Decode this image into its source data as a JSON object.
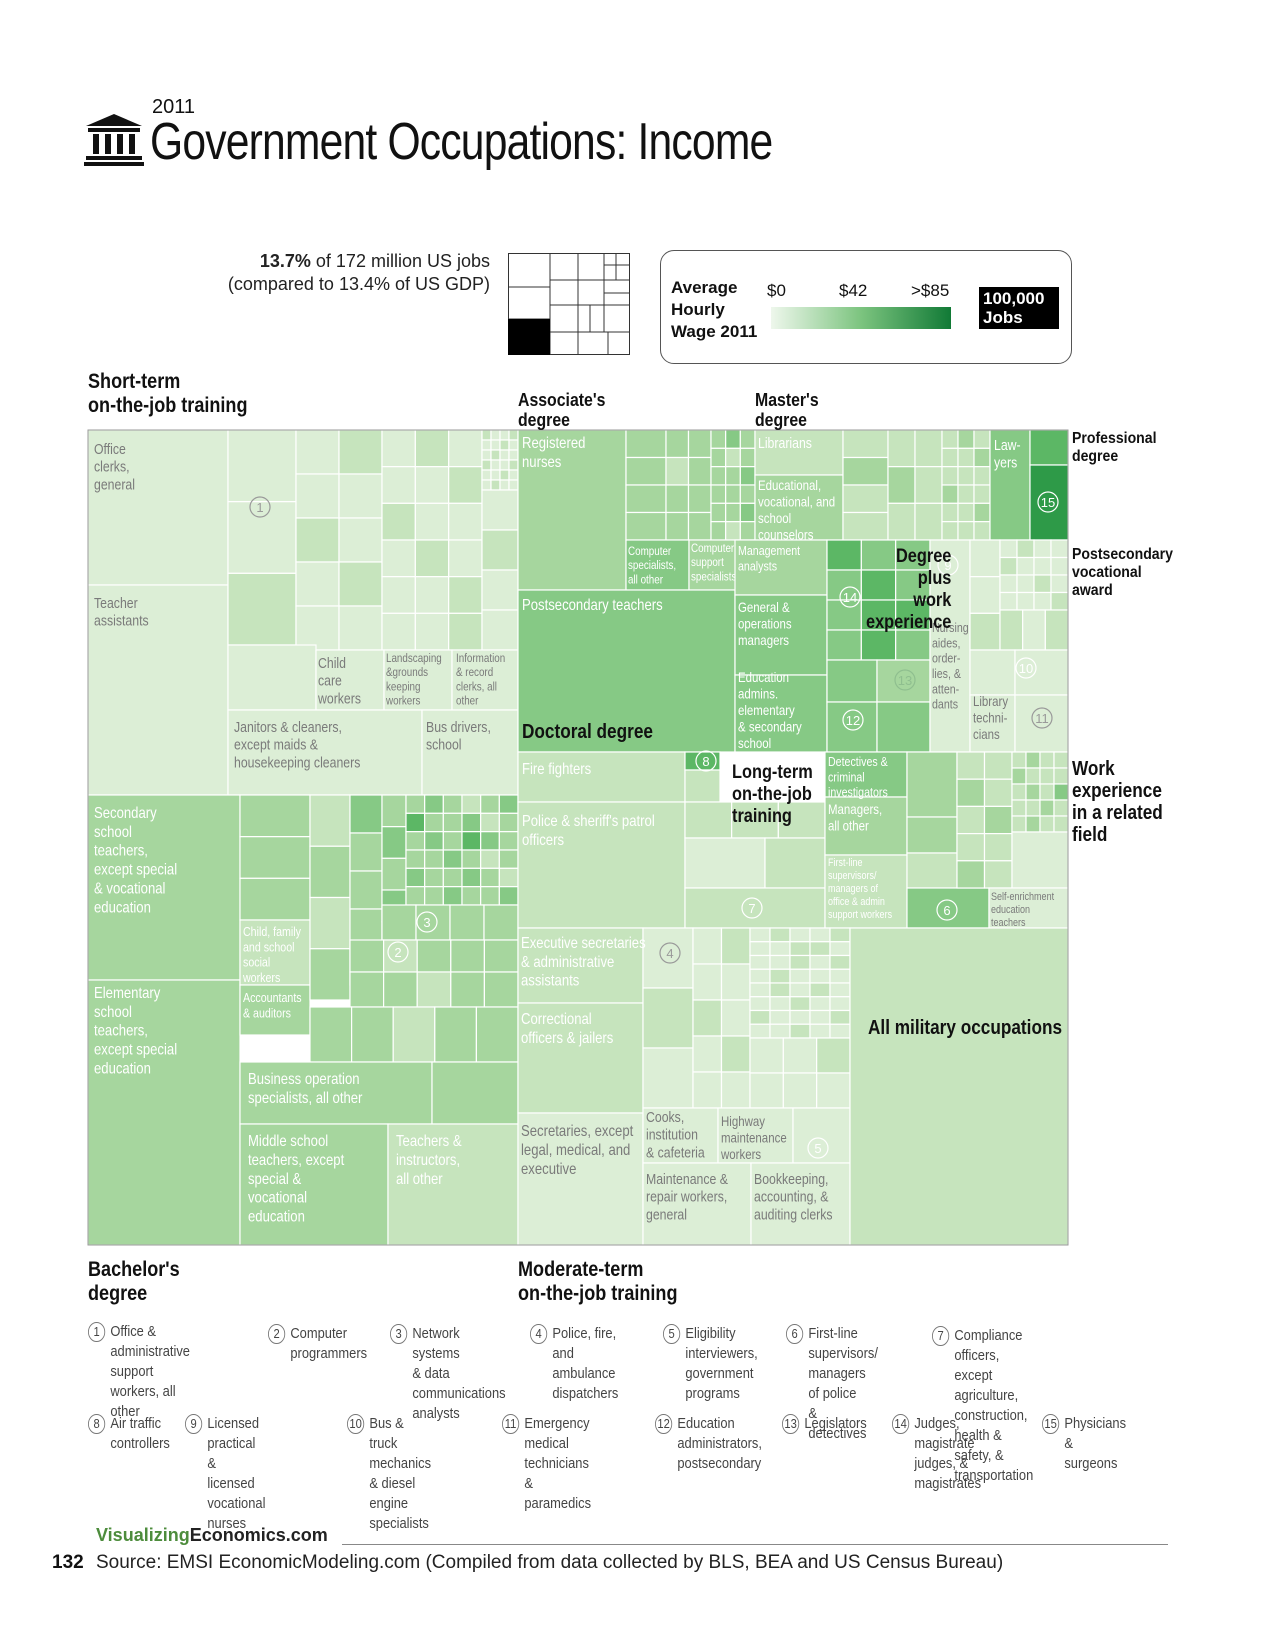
{
  "header": {
    "year": "2011",
    "title": "Government Occupations: Income"
  },
  "summary": {
    "pct": "13.7%",
    "line1_rest": " of 172 million US jobs",
    "line2": "(compared to 13.4% of US GDP)"
  },
  "legend": {
    "title_lines": [
      "Average",
      "Hourly",
      "Wage 2011"
    ],
    "ticks": [
      "$0",
      "$42",
      ">$85"
    ],
    "jobs_box": [
      "100,000",
      "Jobs"
    ]
  },
  "colors": {
    "c1": "#dceed6",
    "c2": "#c6e4bd",
    "c3": "#a6d69e",
    "c4": "#86c985",
    "c5": "#5cb765",
    "c6": "#2e9a48",
    "c7": "#127a34",
    "border": "#ffffff",
    "frame": "#999999"
  },
  "groups": {
    "short_term": "Short-term\non-the-job training",
    "associates": "Associate's\ndegree",
    "masters": "Master's\ndegree",
    "professional": "Professional\ndegree",
    "postsecondary_vocational": "Postsecondary\nvocational\naward",
    "work_experience": "Work\nexperience\nin a related\nfield",
    "bachelors": "Bachelor's\ndegree",
    "moderate_term": "Moderate-term\non-the-job training",
    "doctoral": "Doctoral degree",
    "degree_plus_work": "Degree\nplus\nwork\nexperience",
    "long_term": "Long-term\non-the-job\ntraining",
    "military": "All military occupations"
  },
  "chart_data": {
    "type": "treemap",
    "title": "Government Occupations: Income",
    "subtitle": "2011",
    "size_measure": "Jobs",
    "color_measure": "Average Hourly Wage 2011",
    "color_scale": {
      "min": 0,
      "mid": 42,
      "max": 85,
      "max_label": ">$85"
    },
    "cells": [
      {
        "label": "Office clerks, general",
        "group": "Short-term on-the-job training",
        "shade": 1
      },
      {
        "label": "Teacher assistants",
        "group": "Short-term on-the-job training",
        "shade": 1
      },
      {
        "label": "Child care workers",
        "group": "Short-term on-the-job training",
        "shade": 1
      },
      {
        "label": "Landscaping &grounds keeping workers",
        "group": "Short-term on-the-job training",
        "shade": 1
      },
      {
        "label": "Information & record clerks, all other",
        "group": "Short-term on-the-job training",
        "shade": 1
      },
      {
        "label": "Janitors & cleaners, except maids & housekeeping cleaners",
        "group": "Short-term on-the-job training",
        "shade": 1
      },
      {
        "label": "Bus drivers, school",
        "group": "Short-term on-the-job training",
        "shade": 1
      },
      {
        "label": "Registered nurses",
        "group": "Associate's degree",
        "shade": 3
      },
      {
        "label": "Computer specialists, all other",
        "group": "Associate's degree",
        "shade": 4
      },
      {
        "label": "Computer support specialists",
        "group": "Associate's degree",
        "shade": 3
      },
      {
        "label": "Librarians",
        "group": "Master's degree",
        "shade": 2
      },
      {
        "label": "Educational, vocational, and school counselors",
        "group": "Master's degree",
        "shade": 3
      },
      {
        "label": "Law-yers",
        "group": "Professional degree",
        "shade": 4
      },
      {
        "label": "Postsecondary teachers",
        "group": "Doctoral degree",
        "shade": 4
      },
      {
        "label": "Management analysts",
        "group": "Degree plus work experience",
        "shade": 3
      },
      {
        "label": "General & operations managers",
        "group": "Degree plus work experience",
        "shade": 4
      },
      {
        "label": "Education admins. elementary & secondary school",
        "group": "Degree plus work experience",
        "shade": 4
      },
      {
        "label": "Nursing aides, orderlies, & attendants",
        "group": "Postsecondary vocational award",
        "shade": 1
      },
      {
        "label": "Library technicians",
        "group": "Postsecondary vocational award",
        "shade": 1
      },
      {
        "label": "Secondary school teachers, except special & vocational education",
        "group": "Bachelor's degree",
        "shade": 3
      },
      {
        "label": "Elementary school teachers, except special education",
        "group": "Bachelor's degree",
        "shade": 3
      },
      {
        "label": "Child, family and school social workers",
        "group": "Bachelor's degree",
        "shade": 2
      },
      {
        "label": "Accountants & auditors",
        "group": "Bachelor's degree",
        "shade": 3
      },
      {
        "label": "Business operation specialists, all other",
        "group": "Bachelor's degree",
        "shade": 3
      },
      {
        "label": "Middle school teachers, except special & vocational education",
        "group": "Bachelor's degree",
        "shade": 3
      },
      {
        "label": "Teachers & instructors, all other",
        "group": "Bachelor's degree",
        "shade": 2
      },
      {
        "label": "Fire fighters",
        "group": "Long-term on-the-job training",
        "shade": 2
      },
      {
        "label": "Police & sheriff's patrol officers",
        "group": "Long-term on-the-job training",
        "shade": 2
      },
      {
        "label": "Detectives & criminal investigators",
        "group": "Work experience in a related field",
        "shade": 4
      },
      {
        "label": "Managers, all other",
        "group": "Work experience in a related field",
        "shade": 3
      },
      {
        "label": "First-line supervisors/managers of office & admin support workers",
        "group": "Work experience in a related field",
        "shade": 2
      },
      {
        "label": "Self-enrichment education teachers",
        "group": "Work experience in a related field",
        "shade": 1
      },
      {
        "label": "Executive secretaries & administrative assistants",
        "group": "Moderate-term on-the-job training",
        "shade": 2
      },
      {
        "label": "Correctional officers & jailers",
        "group": "Moderate-term on-the-job training",
        "shade": 2
      },
      {
        "label": "Secretaries, except legal, medical, and executive",
        "group": "Moderate-term on-the-job training",
        "shade": 1
      },
      {
        "label": "Cooks, institution & cafeteria",
        "group": "Moderate-term on-the-job training",
        "shade": 1
      },
      {
        "label": "Highway maintenance workers",
        "group": "Moderate-term on-the-job training",
        "shade": 1
      },
      {
        "label": "Maintenance & repair workers, general",
        "group": "Moderate-term on-the-job training",
        "shade": 1
      },
      {
        "label": "Bookkeeping, accounting, & auditing clerks",
        "group": "Moderate-term on-the-job training",
        "shade": 1
      },
      {
        "label": "All military occupations",
        "group": "Military",
        "shade": 2
      }
    ]
  },
  "footnotes": [
    {
      "num": "1",
      "text": "Office & administrative\nsupport workers, all\nother"
    },
    {
      "num": "2",
      "text": "Computer\nprogrammers"
    },
    {
      "num": "3",
      "text": "Network systems\n& data\ncommunications\nanalysts"
    },
    {
      "num": "4",
      "text": "Police, fire, and\nambulance\ndispatchers"
    },
    {
      "num": "5",
      "text": "Eligibility\ninterviewers,\ngovernment\nprograms"
    },
    {
      "num": "6",
      "text": "First-line\nsupervisors/\nmanagers of police\n& detectives"
    },
    {
      "num": "7",
      "text": "Compliance officers, except\nagriculture, construction,\nhealth & safety, &\ntransportation"
    },
    {
      "num": "8",
      "text": "Air traffic\ncontrollers"
    },
    {
      "num": "9",
      "text": "Licensed practical &\nlicensed vocational\nnurses"
    },
    {
      "num": "10",
      "text": "Bus & truck\nmechanics & diesel\nengine specialists"
    },
    {
      "num": "11",
      "text": "Emergency medical\ntechnicians &\nparamedics"
    },
    {
      "num": "12",
      "text": "Education\nadministrators,\npostsecondary"
    },
    {
      "num": "13",
      "text": "Legislators"
    },
    {
      "num": "14",
      "text": "Judges, magistrate\njudges, &\nmagistrates"
    },
    {
      "num": "15",
      "text": "Physicians &\nsurgeons"
    }
  ],
  "footer": {
    "site_green": "Visualizing",
    "site_dark": "Economics.com",
    "page": "132",
    "source": "Source: EMSI EconomicModeling.com (Compiled from data collected by BLS, BEA and US Census Bureau)"
  }
}
